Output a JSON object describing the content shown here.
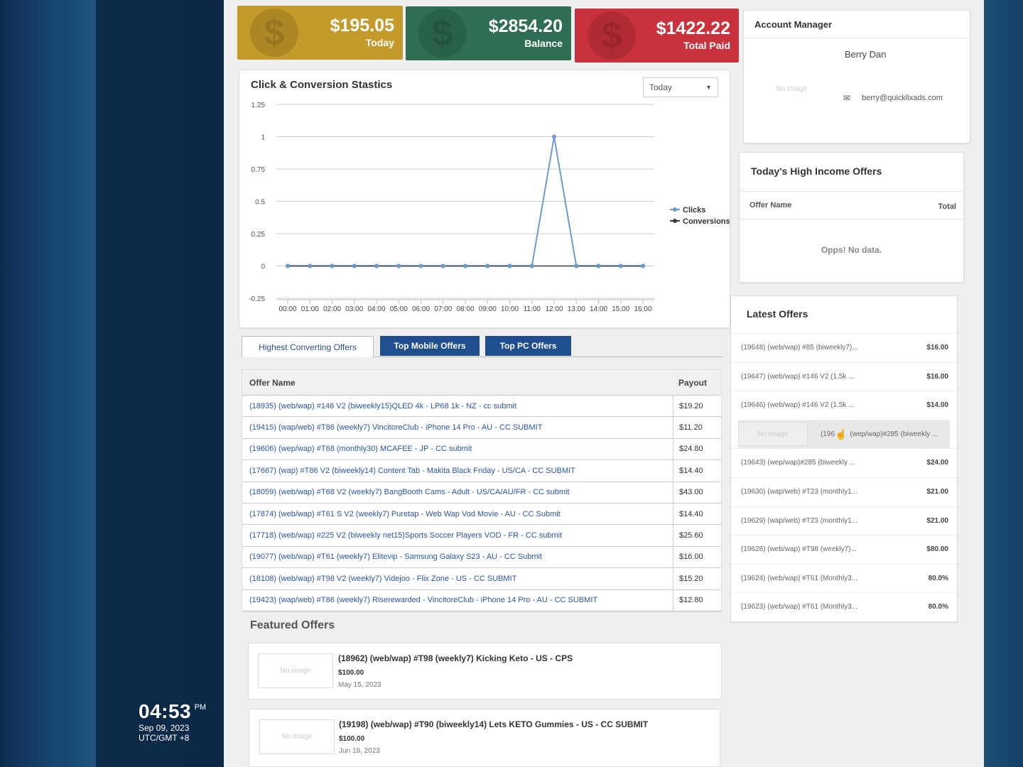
{
  "stats": [
    {
      "value": "$195.05",
      "label": "Today",
      "color": "#c49a2a"
    },
    {
      "value": "$2854.20",
      "label": "Balance",
      "color": "#2f6e52"
    },
    {
      "value": "$1422.22",
      "label": "Total Paid",
      "color": "#c9323c"
    }
  ],
  "account_manager": {
    "title": "Account Manager",
    "name": "Berry Dan",
    "image_placeholder": "No image",
    "email": "berry@quicklixads.com"
  },
  "chart_panel": {
    "title": "Click & Conversion Stastics",
    "range_select": "Today"
  },
  "chart_data": {
    "type": "line",
    "x": [
      "00:00",
      "01:00",
      "02:00",
      "03:00",
      "04:00",
      "05:00",
      "06:00",
      "07:00",
      "08:00",
      "09:00",
      "10:00",
      "11:00",
      "12:00",
      "13:00",
      "14:00",
      "15:00",
      "16:00"
    ],
    "series": [
      {
        "name": "Clicks",
        "color": "#6a9bd1",
        "values": [
          0,
          0,
          0,
          0,
          0,
          0,
          0,
          0,
          0,
          0,
          0,
          0,
          1,
          0,
          0,
          0,
          0
        ]
      },
      {
        "name": "Conversions",
        "color": "#333a45",
        "values": [
          0,
          0,
          0,
          0,
          0,
          0,
          0,
          0,
          0,
          0,
          0,
          0,
          0,
          0,
          0,
          0,
          0
        ]
      }
    ],
    "yticks": [
      "1.25",
      "1",
      "0.75",
      "0.5",
      "0.25",
      "0",
      "-0.25"
    ],
    "ylim": [
      -0.25,
      1.25
    ],
    "legend": "right",
    "grid": true
  },
  "tabs": [
    {
      "label": "Highest Converting Offers",
      "active": true
    },
    {
      "label": "Top Mobile Offers",
      "active": false
    },
    {
      "label": "Top PC Offers",
      "active": false
    }
  ],
  "offers_table": {
    "headers": {
      "name": "Offer Name",
      "payout": "Payout"
    },
    "rows": [
      {
        "name": "(18935) (web/wap) #146 V2 (biweekly15)QLED 4k - LP68 1k - NZ - cc submit",
        "payout": "$19.20"
      },
      {
        "name": "(19415) (wap/web) #T86 (weekly7) VincitoreClub - iPhone 14 Pro - AU - CC SUBMIT",
        "payout": "$11.20"
      },
      {
        "name": "(19606) (wep/wap) #T68 (monthly30) MCAFEE - JP - CC submit",
        "payout": "$24.80"
      },
      {
        "name": "(17667) (wap) #T86 V2 (biweekly14) Content Tab - Makita Black Friday - US/CA - CC SUBMIT",
        "payout": "$14.40"
      },
      {
        "name": "(18059) (web/wap) #T68 V2 (weekly7) BangBooth Cams - Adult - US/CA/AU/FR - CC submit",
        "payout": "$43.00"
      },
      {
        "name": "(17874) (web/wap) #T61 S V2 (weekly7) Puretap - Web Wap Vod Movie - AU - CC Submit",
        "payout": "$14.40"
      },
      {
        "name": "(17718) (web/wap) #225 V2 (biweekly net15)Sports Soccer Players VOD - FR - CC submit",
        "payout": "$25.60"
      },
      {
        "name": "(19077) (web/wap) #T61 (weekly7) Elitevip - Samsung Galaxy S23 - AU - CC Submit",
        "payout": "$16.00"
      },
      {
        "name": "(18108) (web/wap) #T98 V2 (weekly7) Videjoo - Flix Zone - US - CC SUBMIT",
        "payout": "$15.20"
      },
      {
        "name": "(19423) (wap/web) #T86 (weekly7) Riserewarded - VincitoreClub - iPhone 14 Pro - AU - CC SUBMIT",
        "payout": "$12.80"
      }
    ]
  },
  "featured": {
    "title": "Featured Offers",
    "items": [
      {
        "image_placeholder": "No image",
        "title": "(18962) (web/wap) #T98 (weekly7) Kicking Keto - US - CPS",
        "price": "$100.00",
        "date": "May 15, 2023"
      },
      {
        "image_placeholder": "No image",
        "title": "(19198) (web/wap) #T90 (biweekly14) Lets KETO Gummies - US - CC SUBMIT",
        "price": "$100.00",
        "date": "Jun 19, 2023"
      }
    ]
  },
  "high_income": {
    "title": "Today's High Income Offers",
    "col_name": "Offer Name",
    "col_total": "Total",
    "empty": "Opps! No data."
  },
  "latest": {
    "title": "Latest Offers",
    "rows": [
      {
        "name": "(19648) (web/wap) #85 (biweekly7)...",
        "value": "$16.00"
      },
      {
        "name": "(19647) (web/wap) #146 V2 (1.5k ...",
        "value": "$16.00"
      },
      {
        "name": "(19646) (web/wap) #146 V2 (1.5k ...",
        "value": "$14.00"
      },
      {
        "name": "(196",
        "name2": "(wep/wap)#285 (biweekly ...",
        "value": "",
        "hover": true,
        "image_placeholder": "No image"
      },
      {
        "name": "(19643) (wep/wap)#285 (biweekly ...",
        "value": "$24.00"
      },
      {
        "name": "(19630) (wap/web) #T23 (monthly1...",
        "value": "$21.00"
      },
      {
        "name": "(19629) (wap/web) #T23 (monthly1...",
        "value": "$21.00"
      },
      {
        "name": "(19628) (web/wap) #T98 (weekly7)...",
        "value": "$80.00"
      },
      {
        "name": "(19624) (web/wap) #T61 (Monthly3...",
        "value": "80.0%"
      },
      {
        "name": "(19623) (web/wap) #T61 (Monthly3...",
        "value": "80.0%"
      }
    ]
  },
  "taskbar_clock": {
    "time": "04:53",
    "ampm": "PM",
    "date": "Sep 09, 2023",
    "timezone": "UTC/GMT +8"
  }
}
